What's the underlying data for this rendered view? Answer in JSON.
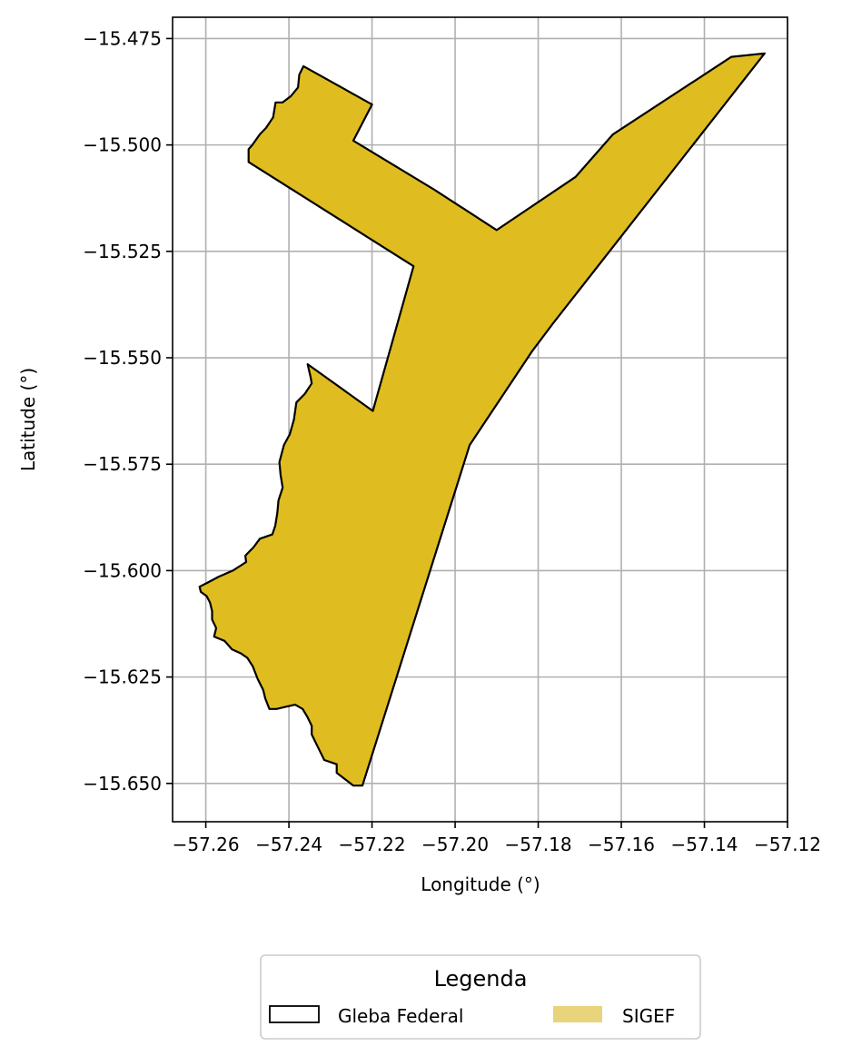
{
  "chart_data": {
    "type": "map",
    "xlabel": "Longitude (°)",
    "ylabel": "Latitude (°)",
    "xlim": [
      -57.268,
      -57.12
    ],
    "ylim": [
      -15.659,
      -15.47
    ],
    "x_ticks": [
      -57.26,
      -57.24,
      -57.22,
      -57.2,
      -57.18,
      -57.16,
      -57.14,
      -57.12
    ],
    "x_tick_labels": [
      "−57.26",
      "−57.24",
      "−57.22",
      "−57.20",
      "−57.18",
      "−57.16",
      "−57.14",
      "−57.12"
    ],
    "y_ticks": [
      -15.475,
      -15.5,
      -15.525,
      -15.55,
      -15.575,
      -15.6,
      -15.625,
      -15.65
    ],
    "y_tick_labels": [
      "−15.475",
      "−15.500",
      "−15.525",
      "−15.550",
      "−15.575",
      "−15.600",
      "−15.625",
      "−15.650"
    ],
    "grid": true,
    "legend": {
      "title": "Legenda",
      "placement": "bottom-center",
      "entries": [
        {
          "label": "Gleba Federal",
          "style": "outline",
          "color": "#000000"
        },
        {
          "label": "SIGEF",
          "style": "fill",
          "color": "#e8d47a"
        }
      ]
    },
    "layers": [
      {
        "name": "Gleba Federal / SIGEF",
        "fill": "#dfbd20",
        "edge": "#000000",
        "coordinates": [
          [
            -57.1255,
            -15.4785
          ],
          [
            -57.1335,
            -15.4793
          ],
          [
            -57.162,
            -15.4975
          ],
          [
            -57.171,
            -15.5075
          ],
          [
            -57.19,
            -15.52
          ],
          [
            -57.205,
            -15.5105
          ],
          [
            -57.2245,
            -15.499
          ],
          [
            -57.22,
            -15.4905
          ],
          [
            -57.2365,
            -15.4815
          ],
          [
            -57.2375,
            -15.4835
          ],
          [
            -57.2378,
            -15.4865
          ],
          [
            -57.2395,
            -15.4885
          ],
          [
            -57.2415,
            -15.49
          ],
          [
            -57.2432,
            -15.49
          ],
          [
            -57.2438,
            -15.4935
          ],
          [
            -57.2455,
            -15.496
          ],
          [
            -57.247,
            -15.4975
          ],
          [
            -57.2488,
            -15.5
          ],
          [
            -57.2497,
            -15.501
          ],
          [
            -57.2497,
            -15.504
          ],
          [
            -57.21,
            -15.5285
          ],
          [
            -57.2198,
            -15.5625
          ],
          [
            -57.2355,
            -15.5515
          ],
          [
            -57.2348,
            -15.5545
          ],
          [
            -57.2345,
            -15.556
          ],
          [
            -57.2362,
            -15.5585
          ],
          [
            -57.2382,
            -15.5605
          ],
          [
            -57.2388,
            -15.5645
          ],
          [
            -57.2398,
            -15.568
          ],
          [
            -57.2412,
            -15.5705
          ],
          [
            -57.2423,
            -15.5745
          ],
          [
            -57.242,
            -15.5775
          ],
          [
            -57.2415,
            -15.5805
          ],
          [
            -57.2425,
            -15.5835
          ],
          [
            -57.2428,
            -15.5865
          ],
          [
            -57.2433,
            -15.5895
          ],
          [
            -57.244,
            -15.5915
          ],
          [
            -57.247,
            -15.5925
          ],
          [
            -57.2485,
            -15.5945
          ],
          [
            -57.2505,
            -15.5965
          ],
          [
            -57.2503,
            -15.598
          ],
          [
            -57.2535,
            -15.6
          ],
          [
            -57.257,
            -15.6015
          ],
          [
            -57.2595,
            -15.6028
          ],
          [
            -57.2615,
            -15.6038
          ],
          [
            -57.2612,
            -15.605
          ],
          [
            -57.2598,
            -15.606
          ],
          [
            -57.259,
            -15.6075
          ],
          [
            -57.2585,
            -15.6095
          ],
          [
            -57.2585,
            -15.6115
          ],
          [
            -57.2575,
            -15.6135
          ],
          [
            -57.258,
            -15.6155
          ],
          [
            -57.2555,
            -15.6165
          ],
          [
            -57.2537,
            -15.6185
          ],
          [
            -57.2515,
            -15.6195
          ],
          [
            -57.25,
            -15.6205
          ],
          [
            -57.2487,
            -15.6225
          ],
          [
            -57.2475,
            -15.6255
          ],
          [
            -57.2462,
            -15.628
          ],
          [
            -57.2457,
            -15.63
          ],
          [
            -57.2447,
            -15.6325
          ],
          [
            -57.243,
            -15.6325
          ],
          [
            -57.2408,
            -15.632
          ],
          [
            -57.2385,
            -15.6315
          ],
          [
            -57.2367,
            -15.6325
          ],
          [
            -57.2355,
            -15.6345
          ],
          [
            -57.2345,
            -15.6365
          ],
          [
            -57.2345,
            -15.6385
          ],
          [
            -57.2335,
            -15.6405
          ],
          [
            -57.2325,
            -15.6425
          ],
          [
            -57.2315,
            -15.6445
          ],
          [
            -57.2285,
            -15.6455
          ],
          [
            -57.2285,
            -15.6475
          ],
          [
            -57.2265,
            -15.649
          ],
          [
            -57.2245,
            -15.6505
          ],
          [
            -57.2223,
            -15.6505
          ],
          [
            -57.1965,
            -15.5705
          ],
          [
            -57.1815,
            -15.5485
          ],
          [
            -57.1765,
            -15.542
          ]
        ]
      }
    ]
  }
}
